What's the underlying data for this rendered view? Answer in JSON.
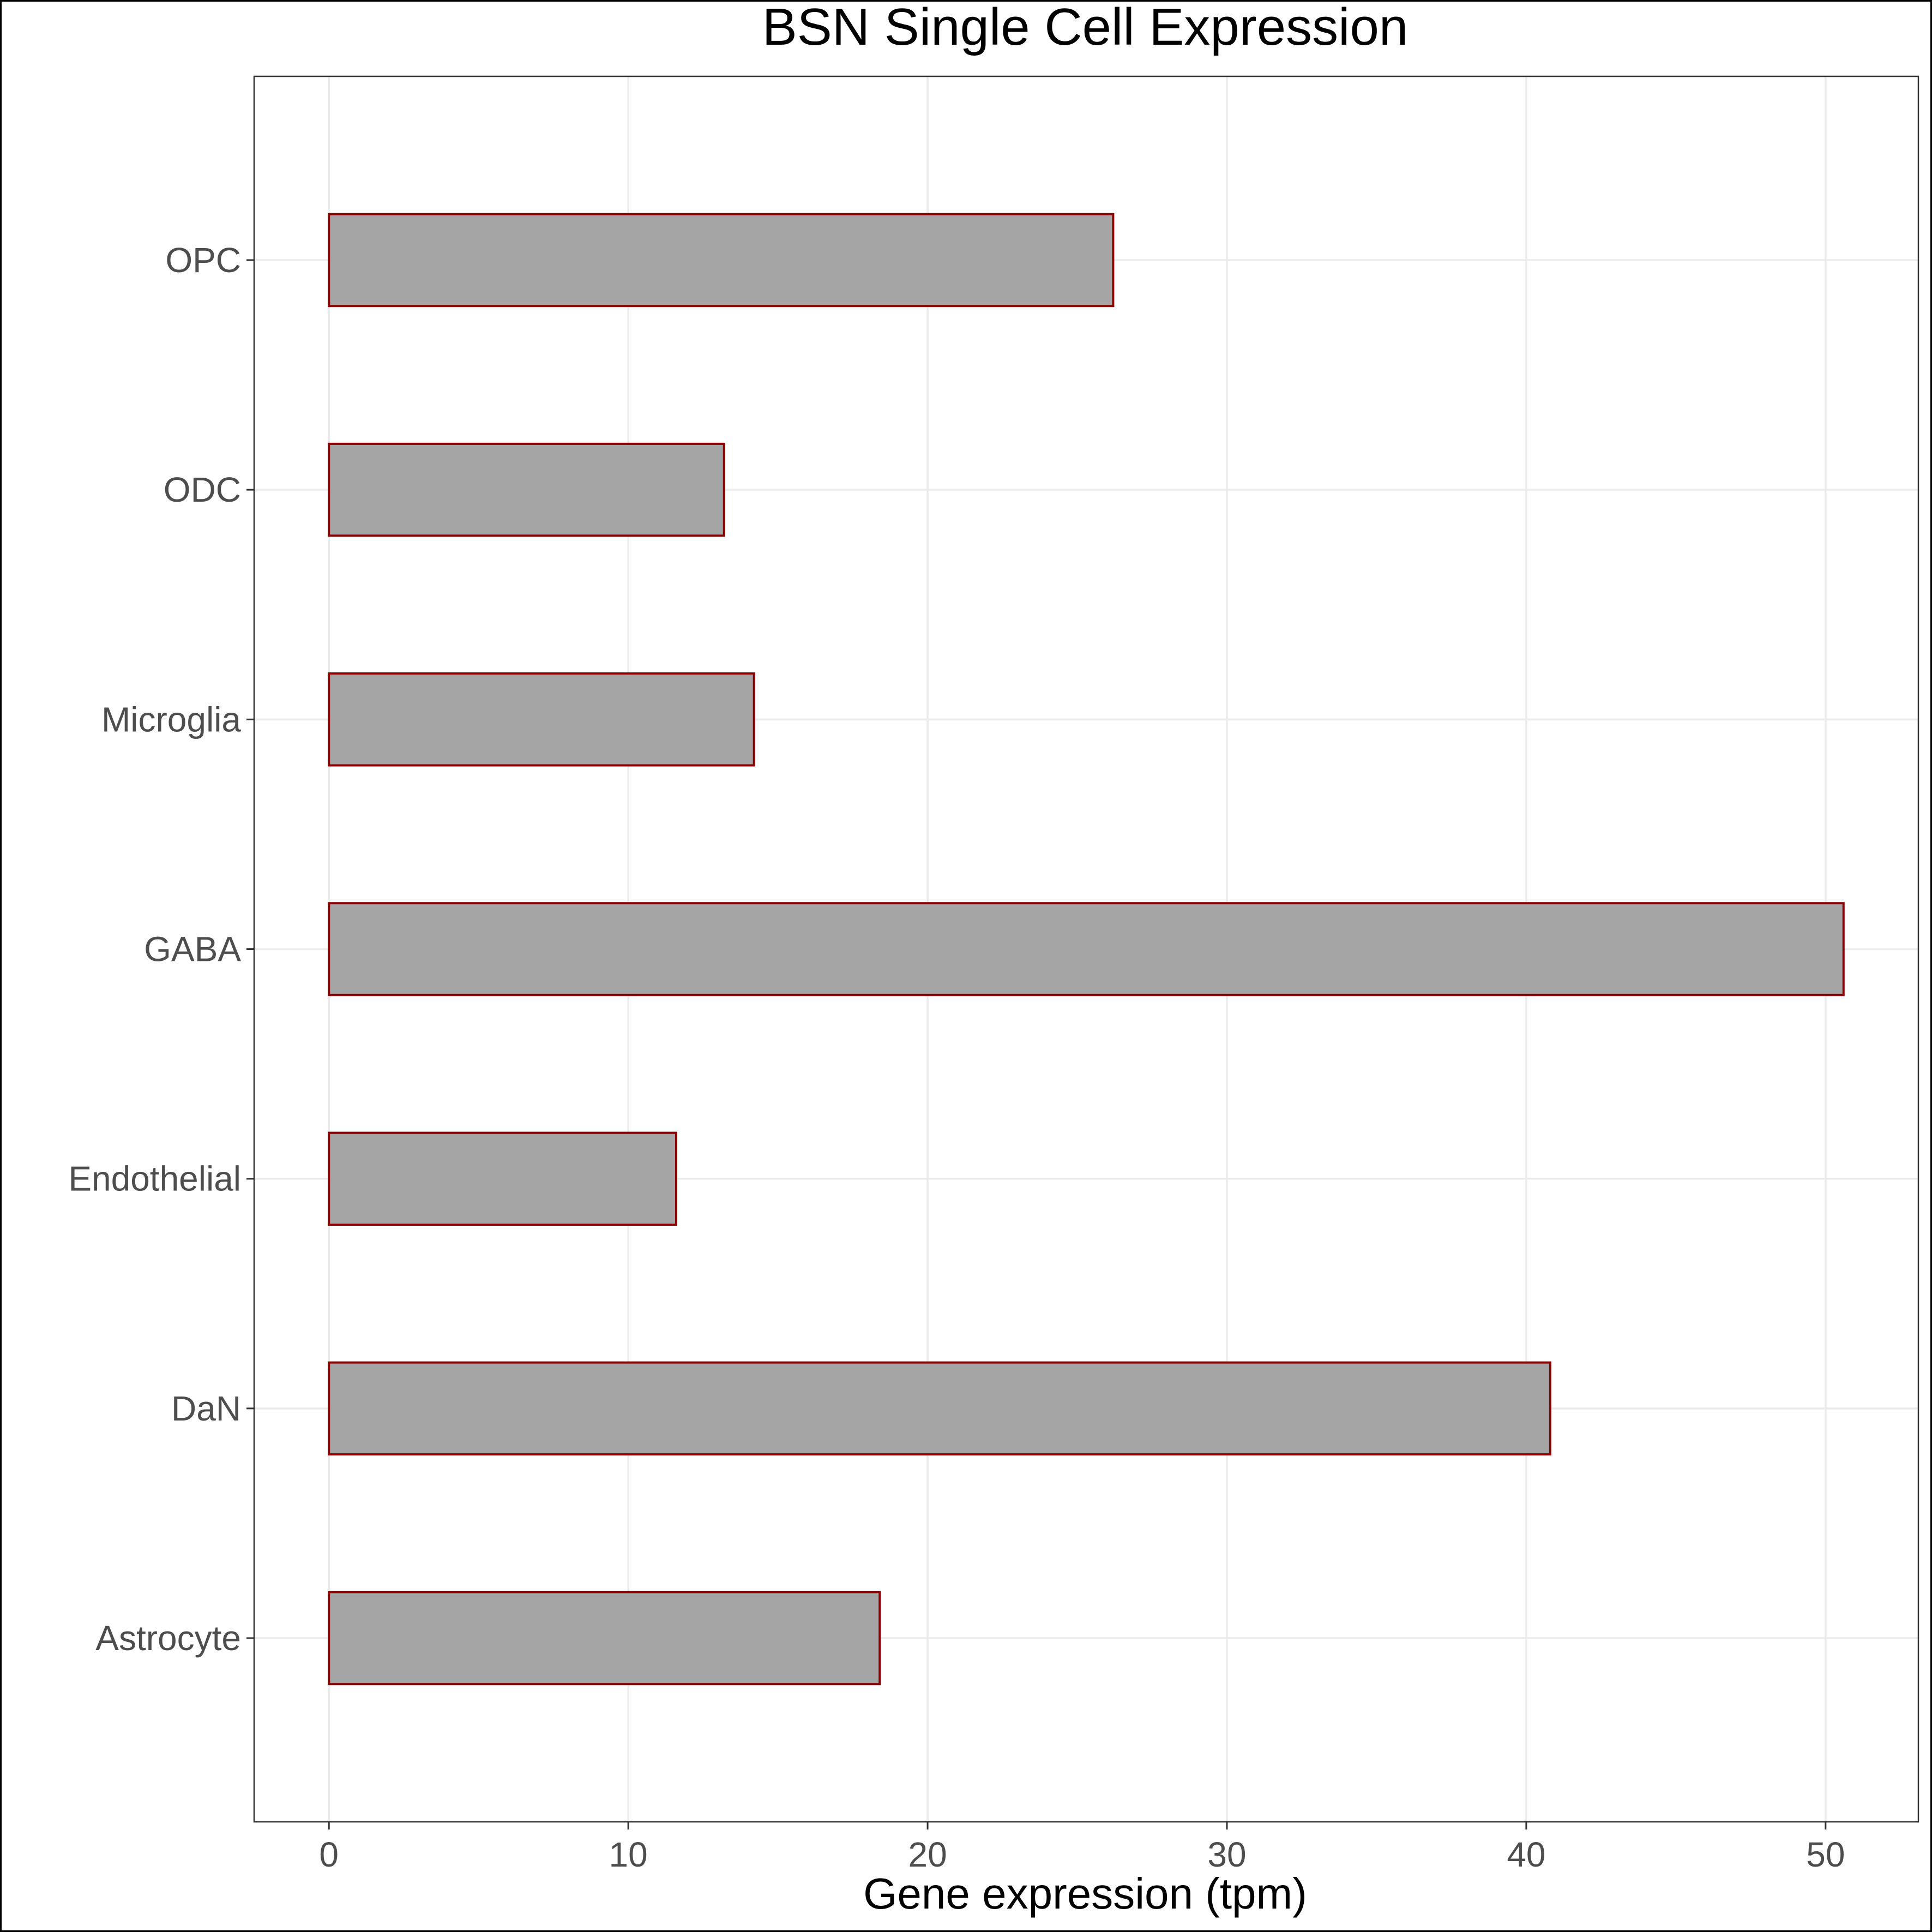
{
  "chart_data": {
    "type": "bar",
    "orientation": "horizontal",
    "title": "BSN Single Cell Expression",
    "xlabel": "Gene expression (tpm)",
    "ylabel": "",
    "categories": [
      "Astrocyte",
      "DaN",
      "Endothelial",
      "GABA",
      "Microglia",
      "ODC",
      "OPC"
    ],
    "values": [
      18.4,
      40.8,
      11.6,
      50.6,
      14.2,
      13.2,
      26.2
    ],
    "xlim": [
      -2.5,
      53.1
    ],
    "xticks": [
      0,
      10,
      20,
      30,
      40,
      50
    ],
    "xtick_labels": [
      "0",
      "10",
      "20",
      "30",
      "40",
      "50"
    ],
    "grid": true,
    "colors": {
      "bar_fill": "#a5a5a5",
      "bar_stroke": "#8b0000",
      "grid": "#ebebeb",
      "panel_border": "#333333",
      "tick_label": "#4d4d4d"
    }
  }
}
